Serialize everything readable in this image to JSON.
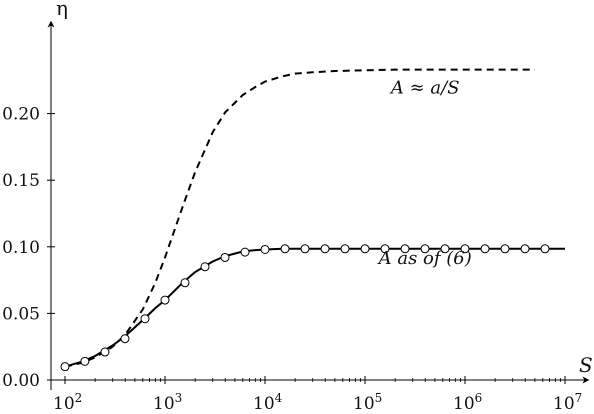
{
  "chart_data": {
    "type": "line",
    "xscale": "log",
    "xlim": [
      100,
      10000000
    ],
    "ylim": [
      0,
      0.25
    ],
    "xlabel": "S",
    "ylabel": "η",
    "grid": false,
    "x_ticks": [
      {
        "value": 100,
        "label": "10",
        "exp": "2"
      },
      {
        "value": 1000,
        "label": "10",
        "exp": "3"
      },
      {
        "value": 10000,
        "label": "10",
        "exp": "4"
      },
      {
        "value": 100000,
        "label": "10",
        "exp": "5"
      },
      {
        "value": 1000000,
        "label": "10",
        "exp": "6"
      },
      {
        "value": 10000000,
        "label": "10",
        "exp": "7"
      }
    ],
    "y_ticks": [
      {
        "value": 0.0,
        "label": "0.00"
      },
      {
        "value": 0.05,
        "label": "0.05"
      },
      {
        "value": 0.1,
        "label": "0.10"
      },
      {
        "value": 0.15,
        "label": "0.15"
      },
      {
        "value": 0.2,
        "label": "0.20"
      }
    ],
    "series": [
      {
        "name": "A ≈ a/S",
        "style": "dashed",
        "color": "#000000",
        "label_at": [
          400000,
          0.215
        ],
        "x": [
          100,
          150,
          200,
          300,
          400,
          600,
          800,
          1000,
          1500,
          2000,
          3000,
          4000,
          6000,
          8000,
          10000,
          15000,
          20000,
          30000,
          50000,
          100000,
          200000,
          500000,
          1000000,
          3000000,
          5000000
        ],
        "y": [
          0.01,
          0.013,
          0.017,
          0.025,
          0.034,
          0.053,
          0.073,
          0.092,
          0.13,
          0.156,
          0.186,
          0.201,
          0.214,
          0.22,
          0.224,
          0.228,
          0.23,
          0.231,
          0.232,
          0.2325,
          0.233,
          0.233,
          0.233,
          0.233,
          0.233
        ]
      },
      {
        "name": "A as of (6)",
        "style": "solid",
        "color": "#000000",
        "label_at": [
          400000,
          0.087
        ],
        "x": [
          100,
          150,
          200,
          300,
          400,
          600,
          800,
          1000,
          1500,
          2000,
          3000,
          4000,
          6000,
          8000,
          10000,
          15000,
          20000,
          50000,
          100000,
          1000000,
          10000000
        ],
        "y": [
          0.01,
          0.014,
          0.018,
          0.026,
          0.033,
          0.045,
          0.054,
          0.06,
          0.073,
          0.081,
          0.089,
          0.093,
          0.0965,
          0.0975,
          0.098,
          0.0985,
          0.0985,
          0.0985,
          0.0985,
          0.0985,
          0.0985
        ]
      }
    ],
    "markers": {
      "style": "open-circle",
      "x": [
        100,
        158,
        251,
        398,
        631,
        1000,
        1585,
        2512,
        3981,
        6310,
        10000,
        15849,
        25119,
        39811,
        63096,
        100000,
        158489,
        251189,
        398107,
        630957,
        1000000,
        1584893,
        2511886,
        3981072,
        6309573
      ],
      "y": [
        0.01,
        0.014,
        0.021,
        0.031,
        0.046,
        0.06,
        0.073,
        0.085,
        0.092,
        0.096,
        0.098,
        0.0985,
        0.0985,
        0.0985,
        0.0985,
        0.0985,
        0.0985,
        0.0985,
        0.0985,
        0.0985,
        0.0985,
        0.0985,
        0.0985,
        0.0985,
        0.0985
      ]
    }
  }
}
